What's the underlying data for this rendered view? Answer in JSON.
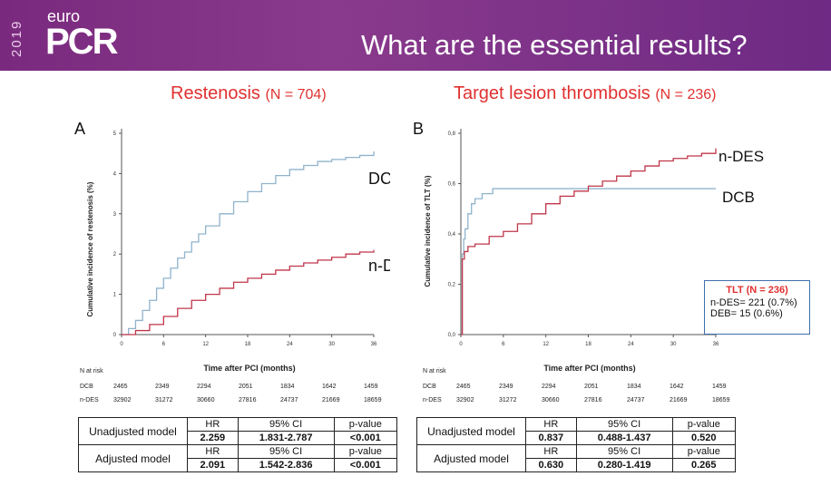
{
  "header": {
    "logo_year": "2019",
    "logo_euro": "euro",
    "logo_pcr": "PCR",
    "title": "What are the essential results?"
  },
  "panel_a": {
    "letter": "A",
    "title": "Restenosis",
    "n_label": "(N = 704)",
    "ylabel": "Cumulative incidence of restenosis (%)",
    "xlabel": "Time after PCI (months)",
    "label_dcb": "DCB",
    "label_ndes": "n-DES"
  },
  "panel_b": {
    "letter": "B",
    "title": "Target lesion thrombosis",
    "n_label": "(N = 236)",
    "ylabel": "Cumulative incidence of TLT (%)",
    "xlabel": "Time after PCI (months)",
    "label_dcb": "DCB",
    "label_ndes": "n-DES"
  },
  "risk_table": {
    "title": "N at risk",
    "rows": [
      {
        "label": "DCB",
        "values": [
          "2465",
          "2349",
          "2294",
          "2051",
          "1834",
          "1642",
          "1459"
        ]
      },
      {
        "label": "n-DES",
        "values": [
          "32902",
          "31272",
          "30660",
          "27816",
          "24737",
          "21669",
          "18659"
        ]
      }
    ]
  },
  "tlt_box": {
    "title": "TLT (N = 236)",
    "line1": "n-DES= 221 (0.7%)",
    "line2": "DEB= 15 (0.6%)"
  },
  "results_a": {
    "rows": [
      {
        "model": "Unadjusted model",
        "h1": "HR",
        "h2": "95% CI",
        "h3": "p-value",
        "v1": "2.259",
        "v2": "1.831-2.787",
        "v3": "<0.001"
      },
      {
        "model": "Adjusted model",
        "h1": "HR",
        "h2": "95% CI",
        "h3": "p-value",
        "v1": "2.091",
        "v2": "1.542-2.836",
        "v3": "<0.001"
      }
    ]
  },
  "results_b": {
    "rows": [
      {
        "model": "Unadjusted model",
        "h1": "HR",
        "h2": "95% CI",
        "h3": "p-value",
        "v1": "0.837",
        "v2": "0.488-1.437",
        "v3": "0.520"
      },
      {
        "model": "Adjusted model",
        "h1": "HR",
        "h2": "95% CI",
        "h3": "p-value",
        "v1": "0.630",
        "v2": "0.280-1.419",
        "v3": "0.265"
      }
    ]
  },
  "colors": {
    "dcb": "#8fb3cc",
    "ndes": "#c0364a",
    "title_red": "#e03030",
    "banner": "#7a2a7e"
  },
  "chart_data": [
    {
      "type": "line",
      "ylabel": "Cumulative incidence of restenosis (%)",
      "xlabel": "Time after PCI (months)",
      "xlim": [
        0,
        36
      ],
      "ylim": [
        0,
        5
      ],
      "xticks": [
        "0",
        "6",
        "12",
        "18",
        "24",
        "30",
        "36"
      ],
      "yticks": [
        "0",
        "1",
        "2",
        "3",
        "4",
        "5"
      ],
      "series": [
        {
          "name": "DCB",
          "x": [
            0,
            1,
            2,
            3,
            4,
            5,
            6,
            7,
            8,
            9,
            10,
            11,
            12,
            14,
            16,
            18,
            20,
            22,
            24,
            26,
            28,
            30,
            32,
            34,
            36
          ],
          "y": [
            0,
            0.15,
            0.35,
            0.6,
            0.85,
            1.15,
            1.4,
            1.65,
            1.9,
            2.05,
            2.3,
            2.5,
            2.7,
            3.0,
            3.3,
            3.55,
            3.75,
            3.95,
            4.1,
            4.2,
            4.3,
            4.35,
            4.4,
            4.45,
            4.55
          ]
        },
        {
          "name": "n-DES",
          "x": [
            0,
            2,
            4,
            6,
            8,
            10,
            12,
            14,
            16,
            18,
            20,
            22,
            24,
            26,
            28,
            30,
            32,
            34,
            36
          ],
          "y": [
            0,
            0.1,
            0.25,
            0.45,
            0.65,
            0.85,
            1.0,
            1.15,
            1.3,
            1.4,
            1.5,
            1.6,
            1.7,
            1.78,
            1.85,
            1.92,
            2.0,
            2.05,
            2.1
          ]
        }
      ]
    },
    {
      "type": "line",
      "ylabel": "Cumulative incidence of TLT (%)",
      "xlabel": "Time after PCI (months)",
      "xlim": [
        0,
        36
      ],
      "ylim": [
        0,
        0.8
      ],
      "xticks": [
        "0",
        "6",
        "12",
        "18",
        "24",
        "30",
        "36"
      ],
      "yticks": [
        "0,0",
        "0,2",
        "0,4",
        "0,6",
        "0,8"
      ],
      "series": [
        {
          "name": "DCB",
          "x": [
            0,
            0.2,
            0.4,
            0.6,
            1.0,
            1.5,
            2.0,
            3.0,
            4.5,
            36
          ],
          "y": [
            0,
            0.32,
            0.38,
            0.42,
            0.48,
            0.52,
            0.54,
            0.56,
            0.58,
            0.58
          ]
        },
        {
          "name": "n-DES",
          "x": [
            0,
            0.2,
            0.5,
            1,
            2,
            4,
            6,
            8,
            10,
            12,
            14,
            16,
            18,
            20,
            22,
            24,
            26,
            28,
            30,
            32,
            34,
            36
          ],
          "y": [
            0,
            0.3,
            0.33,
            0.35,
            0.36,
            0.39,
            0.41,
            0.44,
            0.48,
            0.52,
            0.55,
            0.57,
            0.59,
            0.61,
            0.63,
            0.65,
            0.67,
            0.69,
            0.7,
            0.71,
            0.72,
            0.74
          ]
        }
      ]
    }
  ]
}
